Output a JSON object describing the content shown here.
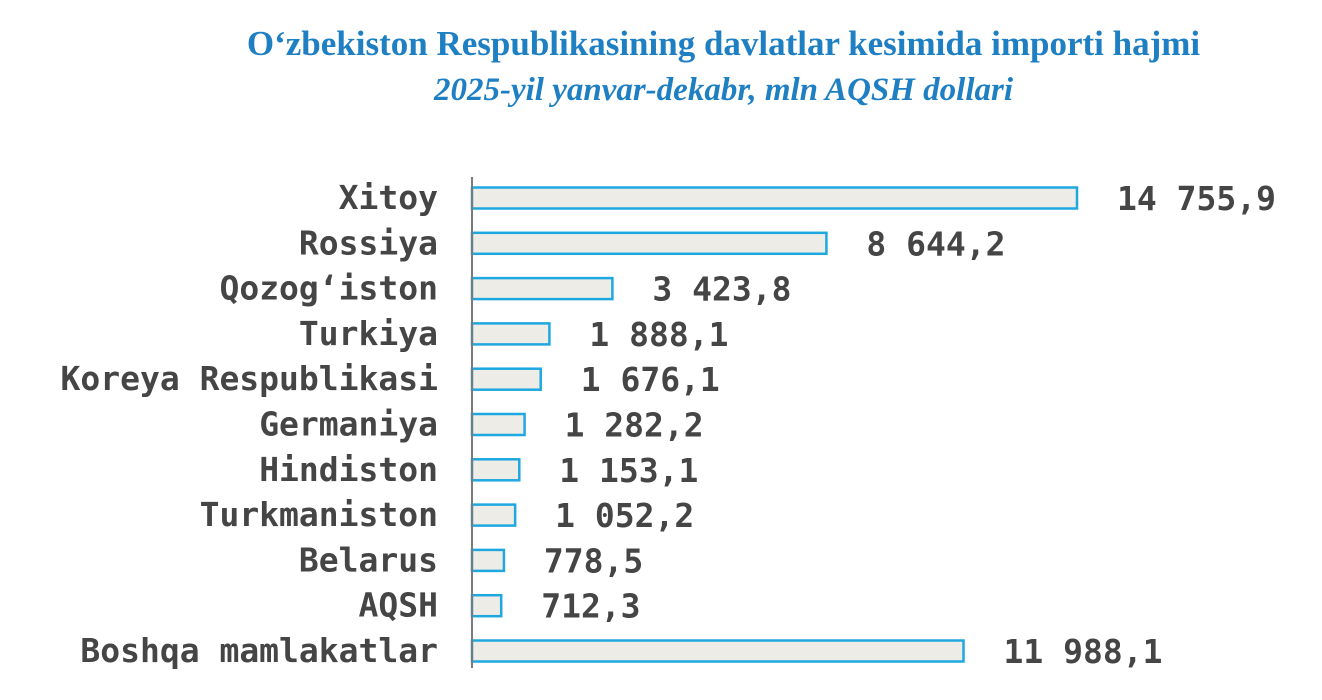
{
  "chart_data": {
    "type": "bar",
    "orientation": "horizontal",
    "title": "O‘zbekiston Respublikasining davlatlar kesimida importi hajmi",
    "subtitle": "2025-yil yanvar-dekabr, mln AQSH dollari",
    "categories": [
      "Xitoy",
      "Rossiya",
      "Qozog‘iston",
      "Turkiya",
      "Koreya Respublikasi",
      "Germaniya",
      "Hindiston",
      "Turkmaniston",
      "Belarus",
      "AQSH",
      "Boshqa mamlakatlar"
    ],
    "values": [
      14755.9,
      8644.2,
      3423.8,
      1888.1,
      1676.1,
      1282.2,
      1153.1,
      1052.2,
      778.5,
      712.3,
      11988.1
    ],
    "value_labels": [
      "14 755,9",
      "8 644,2",
      "3 423,8",
      "1 888,1",
      "1 676,1",
      "1 282,2",
      "1 153,1",
      "1 052,2",
      "778,5",
      "712,3",
      "11 988,1"
    ],
    "colors": {
      "title": "#1e7fc2",
      "bar_fill": "#edece6",
      "bar_stroke": "#1ea8df",
      "text": "#454545",
      "axis": "#7a7a7a"
    },
    "grid": false,
    "legend": "none"
  }
}
